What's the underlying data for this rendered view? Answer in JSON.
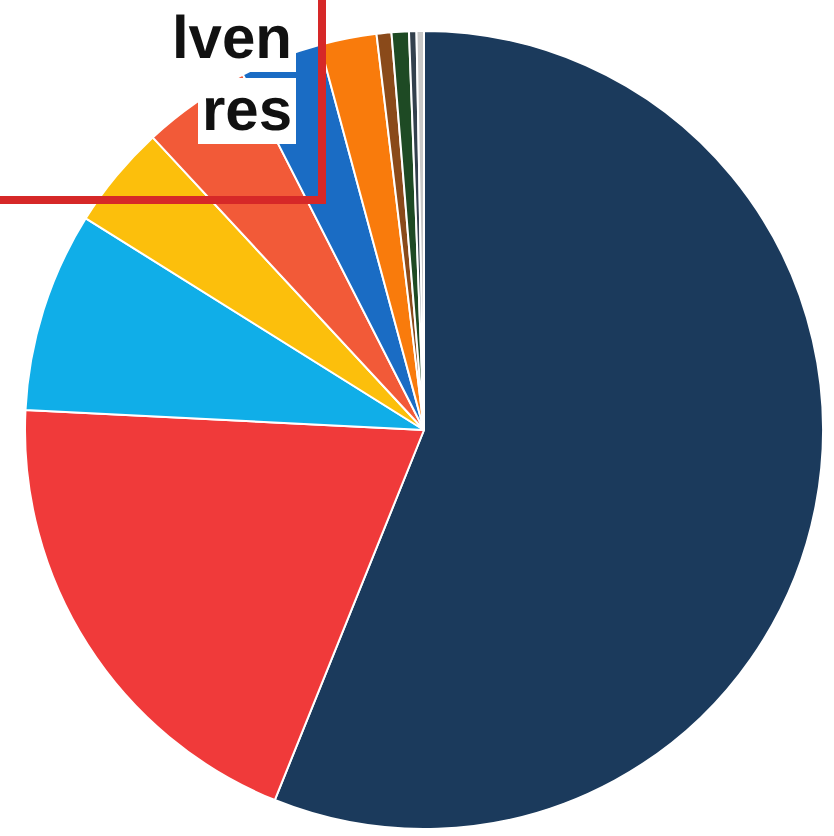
{
  "chart_data": {
    "type": "pie",
    "annotations": [
      "lven",
      "res"
    ],
    "categories": [
      null,
      null,
      null,
      null,
      null,
      null,
      null,
      null,
      null,
      null,
      null
    ],
    "values": [
      56.1,
      19.7,
      8.1,
      4.2,
      4.4,
      3.3,
      2.3,
      0.6,
      0.7,
      0.3,
      0.3
    ],
    "colors": [
      "#1b3a5c",
      "#f03a3a",
      "#10aee8",
      "#fcbf0c",
      "#f25a38",
      "#1a6cc4",
      "#f97b0c",
      "#8a4a1a",
      "#1e4a24",
      "#33404d",
      "#c8c8c8"
    ],
    "legend": false
  }
}
